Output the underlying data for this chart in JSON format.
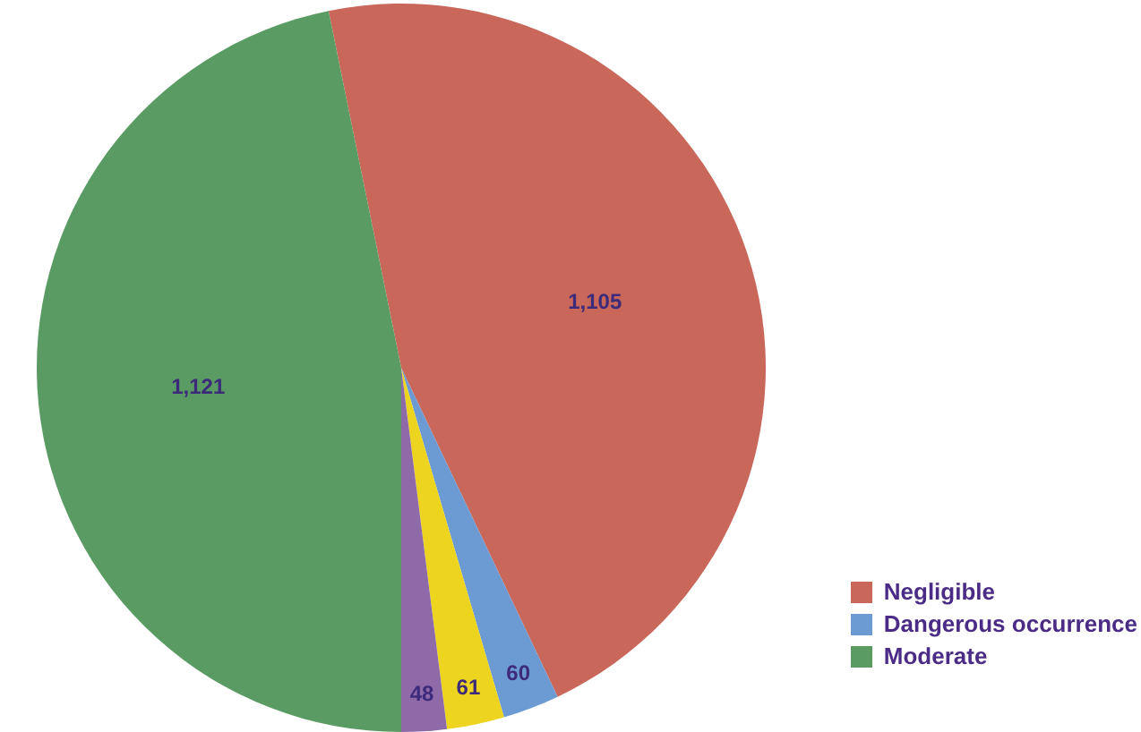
{
  "chart_data": {
    "type": "pie",
    "categories": [
      "Negligible",
      "Dangerous occurrence",
      null,
      null,
      "Moderate"
    ],
    "values": [
      1105,
      60,
      61,
      48,
      1121
    ],
    "colors": [
      "#c8675a",
      "#6b9bd2",
      "#ecd41f",
      "#8e6aa9",
      "#5a9b63"
    ],
    "value_labels": [
      "1,105",
      "60",
      "61",
      "48",
      "1,121"
    ],
    "legend": "bottom right"
  }
}
